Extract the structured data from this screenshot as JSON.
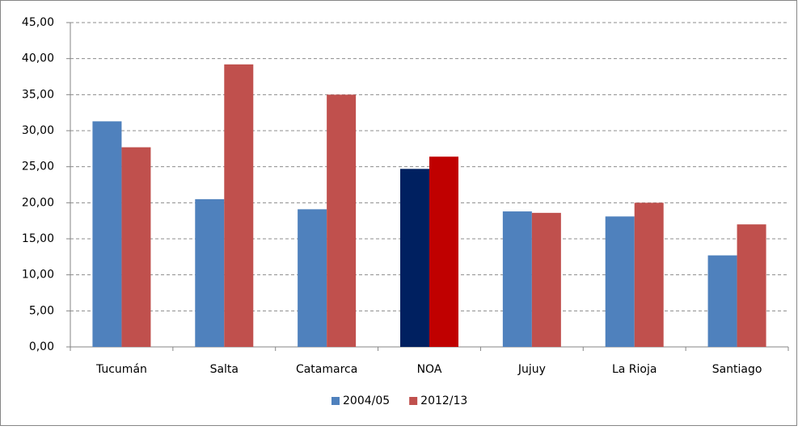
{
  "chart_data": {
    "type": "bar",
    "categories": [
      "Tucumán",
      "Salta",
      "Catamarca",
      "NOA",
      "Jujuy",
      "La Rioja",
      "Santiago"
    ],
    "series": [
      {
        "name": "2004/05",
        "color": "#4f81bd",
        "colors": [
          "#4f81bd",
          "#4f81bd",
          "#4f81bd",
          "#002060",
          "#4f81bd",
          "#4f81bd",
          "#4f81bd"
        ],
        "values": [
          31.3,
          20.5,
          19.1,
          24.7,
          18.8,
          18.1,
          12.7
        ]
      },
      {
        "name": "2012/13",
        "color": "#c0504d",
        "colors": [
          "#c0504d",
          "#c0504d",
          "#c0504d",
          "#c00000",
          "#c0504d",
          "#c0504d",
          "#c0504d"
        ],
        "values": [
          27.7,
          39.2,
          35.0,
          26.4,
          18.6,
          20.0,
          17.0
        ]
      }
    ],
    "ylim": [
      0,
      45
    ],
    "yticks": [
      {
        "value": 0,
        "label": "0,00"
      },
      {
        "value": 5,
        "label": "5,00"
      },
      {
        "value": 10,
        "label": "10,00"
      },
      {
        "value": 15,
        "label": "15,00"
      },
      {
        "value": 20,
        "label": "20,00"
      },
      {
        "value": 25,
        "label": "25,00"
      },
      {
        "value": 30,
        "label": "30,00"
      },
      {
        "value": 35,
        "label": "35,00"
      },
      {
        "value": 40,
        "label": "40,00"
      },
      {
        "value": 45,
        "label": "45,00"
      }
    ],
    "grid": true,
    "legend": "bottom"
  }
}
